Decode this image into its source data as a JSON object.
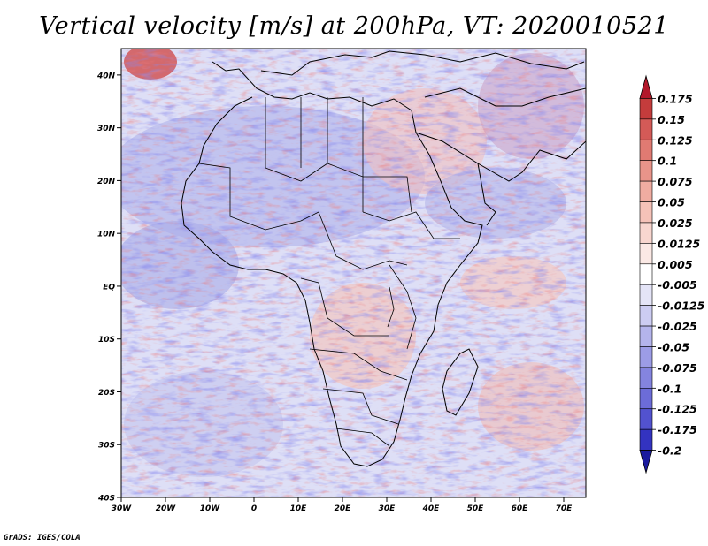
{
  "title": "Vertical velocity [m/s] at 200hPa, VT: 2020010521",
  "footer": "GrADS: IGES/COLA",
  "map": {
    "lat_labels": [
      "40N",
      "30N",
      "20N",
      "10N",
      "EQ",
      "10S",
      "20S",
      "30S",
      "40S"
    ],
    "lon_labels": [
      "30W",
      "20W",
      "10W",
      "0",
      "10E",
      "20E",
      "30E",
      "40E",
      "50E",
      "60E",
      "70E"
    ],
    "extent": {
      "lon_min": -30,
      "lon_max": 75,
      "lat_min": -40,
      "lat_max": 45
    }
  },
  "colorbar": {
    "labels": [
      "0.175",
      "0.15",
      "0.125",
      "0.1",
      "0.075",
      "0.05",
      "0.025",
      "0.0125",
      "0.005",
      "-0.005",
      "-0.0125",
      "-0.025",
      "-0.05",
      "-0.075",
      "-0.1",
      "-0.125",
      "-0.175",
      "-0.2"
    ],
    "colors": [
      "#b2182b",
      "#c43c3c",
      "#d45a57",
      "#e07a72",
      "#e9948a",
      "#f0aca1",
      "#f5c2b8",
      "#f8d6cf",
      "#fbe9e5",
      "#ffffff",
      "#e4e4f7",
      "#ccccf2",
      "#b4b4ec",
      "#9c9ce6",
      "#8484df",
      "#6c6cd8",
      "#5252cf",
      "#3333c0",
      "#1a1a9e"
    ]
  }
}
